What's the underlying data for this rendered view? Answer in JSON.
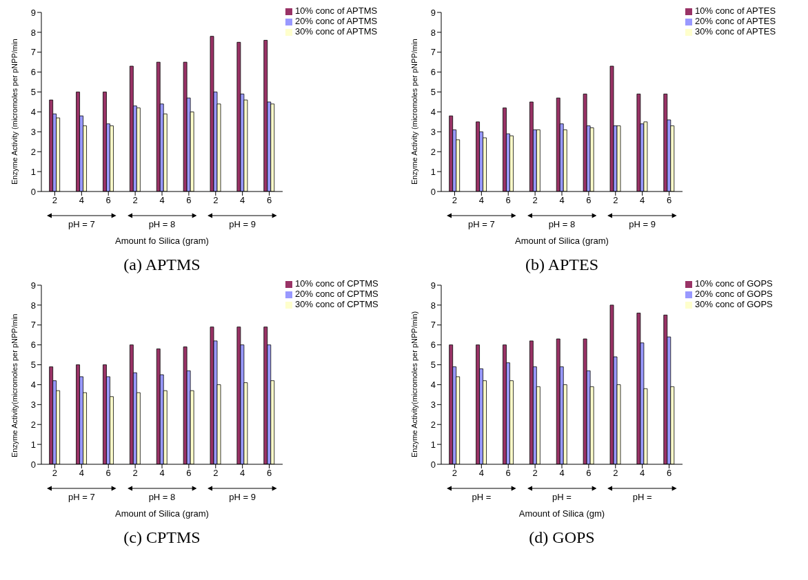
{
  "chart_data": [
    {
      "type": "bar",
      "title": "(a) APTMS",
      "xlabel": "Amount fo Silica (gram)",
      "ylabel": "Enzyme Activity (micromoles per pNPP/min",
      "categories": [
        "2",
        "4",
        "6",
        "2",
        "4",
        "6",
        "2",
        "4",
        "6"
      ],
      "annotations": [
        "pH = 7",
        "pH = 8",
        "pH = 9"
      ],
      "ylim": [
        0,
        9
      ],
      "yticks": [
        0,
        1,
        2,
        3,
        4,
        5,
        6,
        7,
        8,
        9
      ],
      "legend": "top right",
      "series": [
        {
          "name": "10% conc of APTMS",
          "color": "#993366",
          "values": [
            4.6,
            5.0,
            5.0,
            6.3,
            6.5,
            6.5,
            7.8,
            7.5,
            7.6
          ]
        },
        {
          "name": "20% conc of APTMS",
          "color": "#9999ff",
          "values": [
            3.9,
            3.8,
            3.4,
            4.3,
            4.4,
            4.7,
            5.0,
            4.9,
            4.5
          ]
        },
        {
          "name": "30% conc of APTMS",
          "color": "#ffffcc",
          "values": [
            3.7,
            3.3,
            3.3,
            4.2,
            3.9,
            4.0,
            4.4,
            4.6,
            4.4
          ]
        }
      ]
    },
    {
      "type": "bar",
      "title": "(b) APTES",
      "xlabel": "Amount of Silica (gram)",
      "ylabel": "Enzyme Activity (micromoles per pNPP/min",
      "categories": [
        "2",
        "4",
        "6",
        "2",
        "4",
        "6",
        "2",
        "4",
        "6"
      ],
      "annotations": [
        "pH = 7",
        "pH = 8",
        "pH = 9"
      ],
      "ylim": [
        0,
        9
      ],
      "yticks": [
        0,
        1,
        2,
        3,
        4,
        5,
        6,
        7,
        8,
        9
      ],
      "legend": "top right",
      "series": [
        {
          "name": "10% conc of APTES",
          "color": "#993366",
          "values": [
            3.8,
            3.5,
            4.2,
            4.5,
            4.7,
            4.9,
            6.3,
            4.9,
            4.9
          ]
        },
        {
          "name": "20% conc of APTES",
          "color": "#9999ff",
          "values": [
            3.1,
            3.0,
            2.9,
            3.1,
            3.4,
            3.3,
            3.3,
            3.4,
            3.6
          ]
        },
        {
          "name": "30% conc of APTES",
          "color": "#ffffcc",
          "values": [
            2.6,
            2.7,
            2.8,
            3.1,
            3.1,
            3.2,
            3.3,
            3.5,
            3.3
          ]
        }
      ]
    },
    {
      "type": "bar",
      "title": "(c) CPTMS",
      "xlabel": "Amount of Silica (gram)",
      "ylabel": "Enzyme Activity(micromoles per pNPP/min",
      "categories": [
        "2",
        "4",
        "6",
        "2",
        "4",
        "6",
        "2",
        "4",
        "6"
      ],
      "annotations": [
        "pH = 7",
        "pH = 8",
        "pH = 9"
      ],
      "ylim": [
        0,
        9
      ],
      "yticks": [
        0,
        1,
        2,
        3,
        4,
        5,
        6,
        7,
        8,
        9
      ],
      "legend": "top right",
      "series": [
        {
          "name": "10% conc of CPTMS",
          "color": "#993366",
          "values": [
            4.9,
            5.0,
            5.0,
            6.0,
            5.8,
            5.9,
            6.9,
            6.9,
            6.9
          ]
        },
        {
          "name": "20% conc of CPTMS",
          "color": "#9999ff",
          "values": [
            4.2,
            4.4,
            4.4,
            4.6,
            4.5,
            4.7,
            6.2,
            6.0,
            6.0
          ]
        },
        {
          "name": "30% conc of CPTMS",
          "color": "#ffffcc",
          "values": [
            3.7,
            3.6,
            3.4,
            3.6,
            3.7,
            3.7,
            4.0,
            4.1,
            4.2
          ]
        }
      ]
    },
    {
      "type": "bar",
      "title": "(d) GOPS",
      "xlabel": "Amount of Silica (gm)",
      "ylabel": "Enzyme Activity(micromoles per pNPP/min)",
      "categories": [
        "2",
        "4",
        "6",
        "2",
        "4",
        "6",
        "2",
        "4",
        "6"
      ],
      "annotations": [
        "pH =",
        "pH =",
        "pH ="
      ],
      "ylim": [
        0,
        9
      ],
      "yticks": [
        0,
        1,
        2,
        3,
        4,
        5,
        6,
        7,
        8,
        9
      ],
      "legend": "top right",
      "series": [
        {
          "name": "10% conc of GOPS",
          "color": "#993366",
          "values": [
            6.0,
            6.0,
            6.0,
            6.2,
            6.3,
            6.3,
            8.0,
            7.6,
            7.5
          ]
        },
        {
          "name": "20% conc of GOPS",
          "color": "#9999ff",
          "values": [
            4.9,
            4.8,
            5.1,
            4.9,
            4.9,
            4.7,
            5.4,
            6.1,
            6.4
          ]
        },
        {
          "name": "30% conc of GOPS",
          "color": "#ffffcc",
          "values": [
            4.4,
            4.2,
            4.2,
            3.9,
            4.0,
            3.9,
            4.0,
            3.8,
            3.9
          ]
        }
      ]
    }
  ]
}
